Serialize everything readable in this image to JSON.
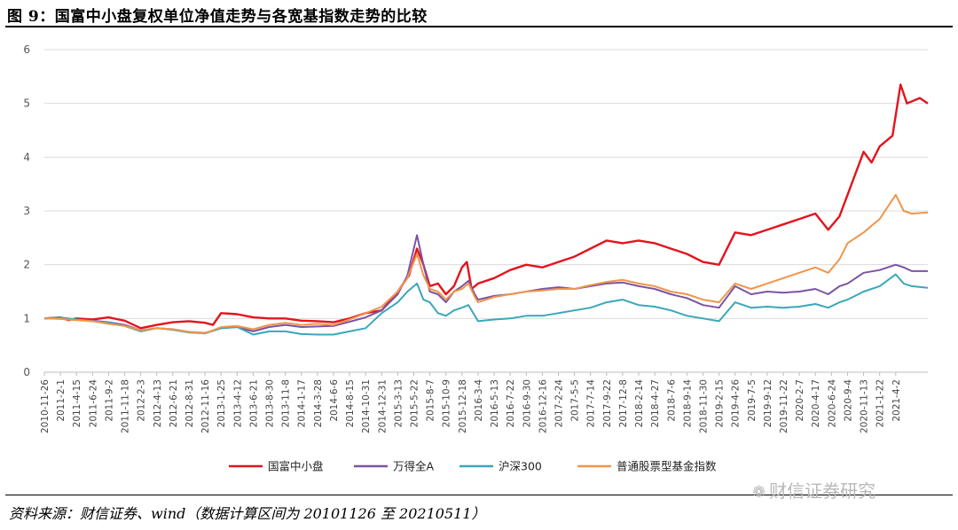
{
  "figure_title": "图 9：国富中小盘复权单位净值走势与各宽基指数走势的比较",
  "source_note": "资料来源：财信证券、wind（数据计算区间为 20101126 至 20210511）",
  "watermark": "财信证券研究",
  "watermark_icon": "wechat-icon",
  "chart_data": {
    "type": "line",
    "ylim": [
      0,
      6
    ],
    "y_ticks": [
      "0",
      "1",
      "2",
      "3",
      "4",
      "5",
      "6"
    ],
    "x_tick_labels": [
      "2010-11-26",
      "2011-2-1",
      "2011-4-15",
      "2011-6-24",
      "2011-9-2",
      "2011-11-18",
      "2012-2-3",
      "2012-4-13",
      "2012-6-21",
      "2012-8-31",
      "2012-11-16",
      "2013-1-25",
      "2013-4-12",
      "2013-6-21",
      "2013-8-30",
      "2013-11-8",
      "2014-1-17",
      "2014-3-28",
      "2014-6-6",
      "2014-8-15",
      "2014-10-31",
      "2014-12-31",
      "2015-3-13",
      "2015-5-22",
      "2015-8-7",
      "2015-10-9",
      "2015-12-18",
      "2016-3-4",
      "2016-5-13",
      "2016-7-22",
      "2016-9-30",
      "2016-12-16",
      "2017-2-24",
      "2017-5-5",
      "2017-7-14",
      "2017-9-22",
      "2017-12-8",
      "2018-2-14",
      "2018-4-27",
      "2018-7-6",
      "2018-9-14",
      "2018-11-30",
      "2019-2-15",
      "2019-4-26",
      "2019-7-5",
      "2019-9-12",
      "2019-11-22",
      "2020-2-7",
      "2020-4-17",
      "2020-6-24",
      "2020-9-4",
      "2020-11-13",
      "2021-1-22",
      "2021-4-2"
    ],
    "grid": true,
    "legend_position": "bottom",
    "series": [
      {
        "name": "国富中小盘",
        "color": "#e3141d",
        "values": [
          [
            0,
            1.0
          ],
          [
            1,
            1.02
          ],
          [
            1.5,
            0.97
          ],
          [
            2,
            1.0
          ],
          [
            3,
            0.98
          ],
          [
            4,
            1.02
          ],
          [
            5,
            0.96
          ],
          [
            6,
            0.82
          ],
          [
            7,
            0.88
          ],
          [
            8,
            0.93
          ],
          [
            9,
            0.95
          ],
          [
            10,
            0.92
          ],
          [
            10.5,
            0.88
          ],
          [
            11,
            1.1
          ],
          [
            12,
            1.08
          ],
          [
            13,
            1.02
          ],
          [
            14,
            1.0
          ],
          [
            15,
            1.0
          ],
          [
            16,
            0.96
          ],
          [
            17,
            0.95
          ],
          [
            18,
            0.93
          ],
          [
            19,
            1.0
          ],
          [
            20,
            1.1
          ],
          [
            21,
            1.15
          ],
          [
            22,
            1.5
          ],
          [
            22.7,
            1.8
          ],
          [
            23.2,
            2.3
          ],
          [
            23.6,
            2.0
          ],
          [
            24,
            1.6
          ],
          [
            24.5,
            1.65
          ],
          [
            25,
            1.45
          ],
          [
            25.5,
            1.6
          ],
          [
            26,
            1.95
          ],
          [
            26.3,
            2.05
          ],
          [
            26.6,
            1.55
          ],
          [
            27,
            1.65
          ],
          [
            28,
            1.75
          ],
          [
            29,
            1.9
          ],
          [
            30,
            2.0
          ],
          [
            31,
            1.95
          ],
          [
            32,
            2.05
          ],
          [
            33,
            2.15
          ],
          [
            34,
            2.3
          ],
          [
            35,
            2.45
          ],
          [
            36,
            2.4
          ],
          [
            37,
            2.45
          ],
          [
            38,
            2.4
          ],
          [
            39,
            2.3
          ],
          [
            40,
            2.2
          ],
          [
            41,
            2.05
          ],
          [
            42,
            2.0
          ],
          [
            43,
            2.6
          ],
          [
            44,
            2.55
          ],
          [
            45,
            2.65
          ],
          [
            46,
            2.75
          ],
          [
            47,
            2.85
          ],
          [
            48,
            2.95
          ],
          [
            48.8,
            2.65
          ],
          [
            49.5,
            2.9
          ],
          [
            50,
            3.3
          ],
          [
            51,
            4.1
          ],
          [
            51.5,
            3.9
          ],
          [
            52,
            4.2
          ],
          [
            52.8,
            4.4
          ],
          [
            53.3,
            5.35
          ],
          [
            53.7,
            5.0
          ],
          [
            54.5,
            5.1
          ],
          [
            55,
            5.0
          ]
        ]
      },
      {
        "name": "万得全A",
        "color": "#7b54a3",
        "values": [
          [
            0,
            1.0
          ],
          [
            1,
            1.0
          ],
          [
            2,
            0.98
          ],
          [
            3,
            0.96
          ],
          [
            4,
            0.93
          ],
          [
            5,
            0.88
          ],
          [
            6,
            0.78
          ],
          [
            7,
            0.82
          ],
          [
            8,
            0.8
          ],
          [
            9,
            0.75
          ],
          [
            10,
            0.73
          ],
          [
            11,
            0.82
          ],
          [
            12,
            0.84
          ],
          [
            13,
            0.76
          ],
          [
            14,
            0.84
          ],
          [
            15,
            0.88
          ],
          [
            16,
            0.84
          ],
          [
            17,
            0.85
          ],
          [
            18,
            0.86
          ],
          [
            19,
            0.94
          ],
          [
            20,
            1.02
          ],
          [
            21,
            1.15
          ],
          [
            22,
            1.45
          ],
          [
            22.6,
            1.8
          ],
          [
            23.2,
            2.55
          ],
          [
            23.6,
            2.0
          ],
          [
            24,
            1.5
          ],
          [
            24.5,
            1.45
          ],
          [
            25,
            1.3
          ],
          [
            25.5,
            1.5
          ],
          [
            26,
            1.6
          ],
          [
            26.4,
            1.7
          ],
          [
            26.8,
            1.45
          ],
          [
            27,
            1.35
          ],
          [
            28,
            1.42
          ],
          [
            29,
            1.45
          ],
          [
            30,
            1.5
          ],
          [
            31,
            1.55
          ],
          [
            32,
            1.58
          ],
          [
            33,
            1.55
          ],
          [
            34,
            1.6
          ],
          [
            35,
            1.65
          ],
          [
            36,
            1.67
          ],
          [
            37,
            1.6
          ],
          [
            38,
            1.55
          ],
          [
            39,
            1.45
          ],
          [
            40,
            1.38
          ],
          [
            41,
            1.25
          ],
          [
            42,
            1.2
          ],
          [
            43,
            1.6
          ],
          [
            44,
            1.45
          ],
          [
            45,
            1.5
          ],
          [
            46,
            1.48
          ],
          [
            47,
            1.5
          ],
          [
            48,
            1.55
          ],
          [
            48.8,
            1.45
          ],
          [
            49.5,
            1.6
          ],
          [
            50,
            1.65
          ],
          [
            51,
            1.85
          ],
          [
            52,
            1.9
          ],
          [
            53,
            2.0
          ],
          [
            53.5,
            1.95
          ],
          [
            54,
            1.88
          ],
          [
            55,
            1.88
          ]
        ]
      },
      {
        "name": "沪深300",
        "color": "#3aa7b9",
        "values": [
          [
            0,
            1.0
          ],
          [
            1,
            1.02
          ],
          [
            2,
            0.98
          ],
          [
            3,
            0.95
          ],
          [
            4,
            0.92
          ],
          [
            5,
            0.86
          ],
          [
            6,
            0.76
          ],
          [
            7,
            0.82
          ],
          [
            8,
            0.79
          ],
          [
            9,
            0.74
          ],
          [
            10,
            0.72
          ],
          [
            11,
            0.82
          ],
          [
            12,
            0.84
          ],
          [
            13,
            0.7
          ],
          [
            14,
            0.76
          ],
          [
            15,
            0.76
          ],
          [
            16,
            0.71
          ],
          [
            17,
            0.7
          ],
          [
            18,
            0.7
          ],
          [
            19,
            0.76
          ],
          [
            20,
            0.82
          ],
          [
            21,
            1.1
          ],
          [
            22,
            1.3
          ],
          [
            22.6,
            1.5
          ],
          [
            23.2,
            1.65
          ],
          [
            23.6,
            1.35
          ],
          [
            24,
            1.3
          ],
          [
            24.5,
            1.1
          ],
          [
            25,
            1.05
          ],
          [
            25.5,
            1.15
          ],
          [
            26,
            1.2
          ],
          [
            26.4,
            1.25
          ],
          [
            26.8,
            1.05
          ],
          [
            27,
            0.95
          ],
          [
            28,
            0.98
          ],
          [
            29,
            1.0
          ],
          [
            30,
            1.05
          ],
          [
            31,
            1.05
          ],
          [
            32,
            1.1
          ],
          [
            33,
            1.15
          ],
          [
            34,
            1.2
          ],
          [
            35,
            1.3
          ],
          [
            36,
            1.35
          ],
          [
            37,
            1.25
          ],
          [
            38,
            1.22
          ],
          [
            39,
            1.15
          ],
          [
            40,
            1.05
          ],
          [
            41,
            1.0
          ],
          [
            42,
            0.95
          ],
          [
            43,
            1.3
          ],
          [
            44,
            1.2
          ],
          [
            45,
            1.22
          ],
          [
            46,
            1.2
          ],
          [
            47,
            1.22
          ],
          [
            48,
            1.27
          ],
          [
            48.8,
            1.2
          ],
          [
            49.5,
            1.3
          ],
          [
            50,
            1.35
          ],
          [
            51,
            1.5
          ],
          [
            52,
            1.6
          ],
          [
            53,
            1.82
          ],
          [
            53.5,
            1.65
          ],
          [
            54,
            1.6
          ],
          [
            55,
            1.57
          ]
        ]
      },
      {
        "name": "普通股票型基金指数",
        "color": "#f0954a",
        "values": [
          [
            0,
            1.0
          ],
          [
            1,
            0.99
          ],
          [
            2,
            0.97
          ],
          [
            3,
            0.95
          ],
          [
            4,
            0.9
          ],
          [
            5,
            0.86
          ],
          [
            6,
            0.78
          ],
          [
            7,
            0.82
          ],
          [
            8,
            0.8
          ],
          [
            9,
            0.75
          ],
          [
            10,
            0.72
          ],
          [
            11,
            0.84
          ],
          [
            12,
            0.86
          ],
          [
            13,
            0.8
          ],
          [
            14,
            0.88
          ],
          [
            15,
            0.92
          ],
          [
            16,
            0.88
          ],
          [
            17,
            0.9
          ],
          [
            18,
            0.88
          ],
          [
            19,
            0.98
          ],
          [
            20,
            1.1
          ],
          [
            21,
            1.22
          ],
          [
            22,
            1.5
          ],
          [
            22.6,
            1.75
          ],
          [
            23.2,
            2.2
          ],
          [
            23.6,
            1.8
          ],
          [
            24,
            1.55
          ],
          [
            24.5,
            1.5
          ],
          [
            25,
            1.35
          ],
          [
            25.5,
            1.5
          ],
          [
            26,
            1.55
          ],
          [
            26.4,
            1.65
          ],
          [
            26.8,
            1.4
          ],
          [
            27,
            1.3
          ],
          [
            28,
            1.4
          ],
          [
            29,
            1.45
          ],
          [
            30,
            1.5
          ],
          [
            31,
            1.52
          ],
          [
            32,
            1.55
          ],
          [
            33,
            1.55
          ],
          [
            34,
            1.62
          ],
          [
            35,
            1.68
          ],
          [
            36,
            1.72
          ],
          [
            37,
            1.65
          ],
          [
            38,
            1.6
          ],
          [
            39,
            1.5
          ],
          [
            40,
            1.45
          ],
          [
            41,
            1.35
          ],
          [
            42,
            1.3
          ],
          [
            43,
            1.65
          ],
          [
            44,
            1.55
          ],
          [
            45,
            1.65
          ],
          [
            46,
            1.75
          ],
          [
            47,
            1.85
          ],
          [
            48,
            1.95
          ],
          [
            48.8,
            1.85
          ],
          [
            49.5,
            2.1
          ],
          [
            50,
            2.4
          ],
          [
            51,
            2.6
          ],
          [
            52,
            2.85
          ],
          [
            53,
            3.3
          ],
          [
            53.5,
            3.0
          ],
          [
            54,
            2.95
          ],
          [
            55,
            2.97
          ]
        ]
      }
    ]
  }
}
